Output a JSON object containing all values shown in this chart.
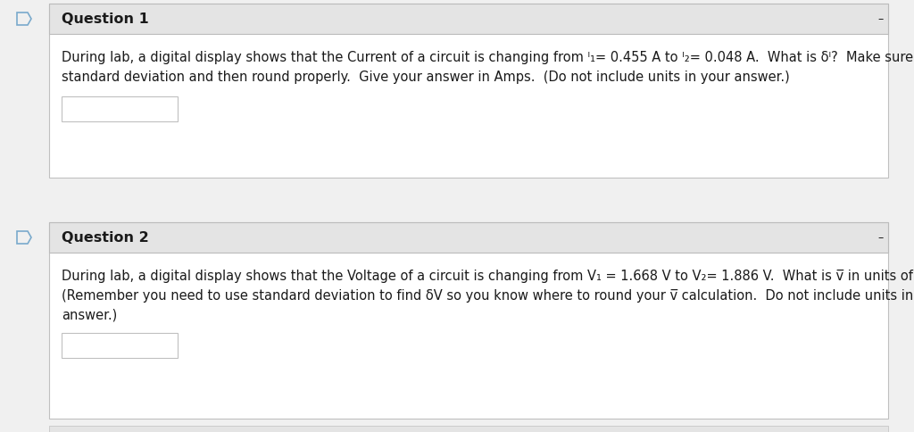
{
  "bg_color": "#f0f0f0",
  "white": "#ffffff",
  "border_color": "#c0c0c0",
  "header_bg": "#e4e4e4",
  "header_border": "#bbbbbb",
  "text_color": "#1a1a1a",
  "icon_color": "#7aaacc",
  "q1_title": "Question 1",
  "q1_body1": "During lab, a digital display shows that the Current of a circuit is changing from Γ1= 0.455 A to Γ2= 0.048 A.  What is δI?  Make sure you use",
  "q1_body2": "standard deviation and then round properly.  Give your answer in Amps.  (Do not include units in your answer.)",
  "q2_title": "Question 2",
  "q2_body1": "During lab, a digital display shows that the Voltage of a circuit is changing from V₁ = 1.668 V to V₂= 1.886 V.  What is ᴠ̅ in units of volts?",
  "q2_body2": "(Remember you need to use standard deviation to find δV so you know where to round your ᴠ̅ calculation.  Do not include units in your",
  "q2_body3": "answer.)",
  "font_size": 10.5,
  "title_font_size": 11.5,
  "fig_width": 10.24,
  "fig_height": 4.85,
  "dpi": 100
}
